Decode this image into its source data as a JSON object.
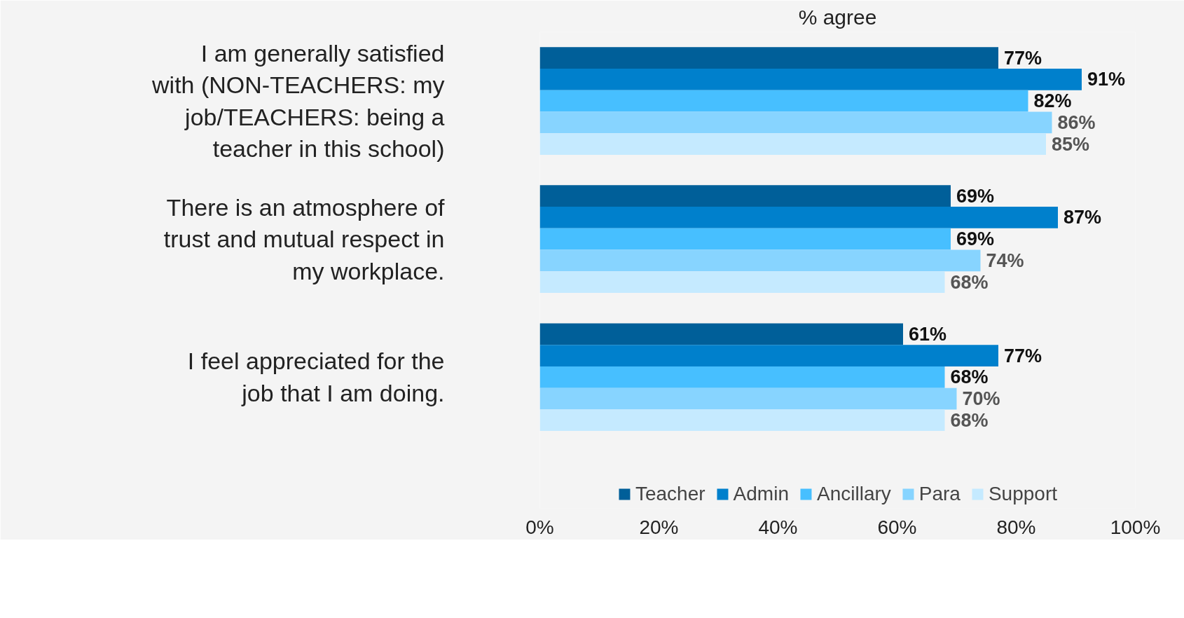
{
  "chart_data": {
    "type": "bar",
    "orientation": "horizontal",
    "title": "% agree",
    "categories": [
      "I am generally satisfied with (NON-TEACHERS: my job/TEACHERS: being a teacher in this school)",
      "There is an atmosphere of trust and mutual respect in my workplace.",
      "I feel appreciated for the job that I am doing."
    ],
    "series": [
      {
        "name": "Teacher",
        "color": "#005f99",
        "values": [
          77,
          69,
          61
        ],
        "value_labels": [
          "77%",
          "69%",
          "61%"
        ]
      },
      {
        "name": "Admin",
        "color": "#0080cc",
        "values": [
          91,
          87,
          77
        ],
        "value_labels": [
          "91%",
          "87%",
          "77%"
        ]
      },
      {
        "name": "Ancillary",
        "color": "#47bfff",
        "values": [
          82,
          69,
          68
        ],
        "value_labels": [
          "82%",
          "69%",
          "68%"
        ]
      },
      {
        "name": "Para",
        "color": "#87d4ff",
        "values": [
          86,
          74,
          70
        ],
        "value_labels": [
          "86%",
          "74%",
          "70%"
        ]
      },
      {
        "name": "Support",
        "color": "#c5eaff",
        "values": [
          85,
          68,
          68
        ],
        "value_labels": [
          "85%",
          "68%",
          "68%"
        ]
      }
    ],
    "xlim": [
      0,
      100
    ],
    "xticks": [
      {
        "value": 0,
        "label": "0%"
      },
      {
        "value": 20,
        "label": "20%"
      },
      {
        "value": 40,
        "label": "40%"
      },
      {
        "value": 60,
        "label": "60%"
      },
      {
        "value": 80,
        "label": "80%"
      },
      {
        "value": 100,
        "label": "100%"
      }
    ],
    "grid": false,
    "legend": "bottom"
  }
}
